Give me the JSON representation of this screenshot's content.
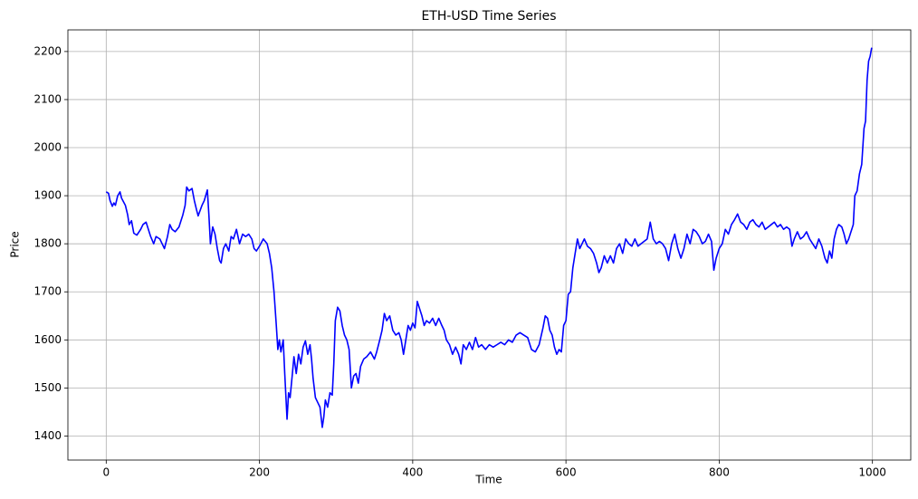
{
  "chart_data": {
    "type": "line",
    "title": "ETH-USD Time Series",
    "xlabel": "Time",
    "ylabel": "Price",
    "x": [
      0,
      3,
      5,
      8,
      10,
      12,
      15,
      18,
      20,
      25,
      28,
      30,
      33,
      36,
      40,
      45,
      48,
      52,
      55,
      58,
      62,
      65,
      70,
      73,
      76,
      80,
      83,
      86,
      90,
      95,
      100,
      103,
      105,
      108,
      112,
      115,
      118,
      120,
      125,
      128,
      132,
      134,
      136,
      139,
      142,
      145,
      148,
      150,
      153,
      156,
      160,
      163,
      166,
      170,
      174,
      178,
      182,
      186,
      190,
      193,
      196,
      200,
      205,
      210,
      213,
      216,
      219,
      222,
      224,
      226,
      228,
      231,
      233,
      236,
      238,
      240,
      243,
      245,
      248,
      251,
      254,
      257,
      260,
      263,
      266,
      268,
      270,
      273,
      276,
      279,
      282,
      284,
      286,
      289,
      292,
      295,
      297,
      299,
      302,
      305,
      308,
      311,
      314,
      317,
      320,
      323,
      326,
      329,
      332,
      336,
      340,
      345,
      350,
      353,
      357,
      360,
      363,
      366,
      370,
      374,
      378,
      382,
      385,
      388,
      391,
      394,
      397,
      400,
      403,
      406,
      409,
      412,
      415,
      418,
      422,
      426,
      430,
      434,
      438,
      441,
      444,
      448,
      452,
      456,
      460,
      463,
      466,
      470,
      474,
      478,
      482,
      486,
      490,
      495,
      500,
      505,
      510,
      515,
      520,
      525,
      530,
      535,
      540,
      545,
      550,
      555,
      560,
      565,
      570,
      573,
      576,
      579,
      582,
      585,
      588,
      591,
      594,
      597,
      600,
      603,
      606,
      609,
      612,
      615,
      618,
      621,
      624,
      628,
      632,
      636,
      640,
      643,
      646,
      650,
      654,
      658,
      662,
      666,
      670,
      674,
      678,
      682,
      686,
      690,
      694,
      698,
      702,
      706,
      710,
      714,
      718,
      722,
      726,
      730,
      734,
      738,
      742,
      746,
      750,
      754,
      758,
      762,
      766,
      770,
      774,
      778,
      782,
      786,
      790,
      793,
      796,
      800,
      804,
      808,
      812,
      816,
      820,
      824,
      828,
      832,
      836,
      840,
      844,
      848,
      852,
      856,
      860,
      864,
      868,
      872,
      876,
      880,
      884,
      888,
      892,
      895,
      898,
      902,
      906,
      910,
      914,
      918,
      922,
      926,
      930,
      934,
      938,
      941,
      944,
      947,
      950,
      953,
      956,
      960,
      963,
      966,
      969,
      972,
      975,
      977,
      980,
      983,
      986,
      989,
      991,
      993,
      995,
      997,
      999
    ],
    "series": [
      {
        "name": "ETH-USD",
        "color": "#0000ff",
        "values": [
          1908,
          1905,
          1890,
          1878,
          1885,
          1880,
          1900,
          1908,
          1895,
          1880,
          1860,
          1840,
          1848,
          1822,
          1818,
          1830,
          1840,
          1845,
          1830,
          1815,
          1800,
          1815,
          1810,
          1800,
          1790,
          1815,
          1840,
          1830,
          1825,
          1835,
          1860,
          1880,
          1918,
          1910,
          1915,
          1890,
          1870,
          1858,
          1880,
          1890,
          1912,
          1860,
          1800,
          1835,
          1820,
          1790,
          1765,
          1760,
          1790,
          1800,
          1785,
          1815,
          1810,
          1830,
          1800,
          1820,
          1815,
          1820,
          1810,
          1790,
          1785,
          1795,
          1810,
          1800,
          1780,
          1750,
          1700,
          1630,
          1580,
          1600,
          1575,
          1600,
          1530,
          1435,
          1490,
          1480,
          1530,
          1565,
          1530,
          1570,
          1550,
          1585,
          1598,
          1570,
          1590,
          1560,
          1520,
          1480,
          1470,
          1460,
          1418,
          1440,
          1475,
          1460,
          1490,
          1485,
          1550,
          1640,
          1668,
          1660,
          1630,
          1610,
          1600,
          1580,
          1500,
          1525,
          1530,
          1510,
          1545,
          1560,
          1565,
          1575,
          1560,
          1575,
          1600,
          1620,
          1655,
          1640,
          1650,
          1620,
          1610,
          1615,
          1600,
          1570,
          1600,
          1630,
          1620,
          1635,
          1625,
          1680,
          1665,
          1650,
          1630,
          1640,
          1635,
          1645,
          1630,
          1645,
          1630,
          1620,
          1600,
          1590,
          1570,
          1585,
          1570,
          1550,
          1590,
          1580,
          1595,
          1580,
          1605,
          1585,
          1590,
          1580,
          1590,
          1585,
          1590,
          1595,
          1590,
          1600,
          1595,
          1610,
          1615,
          1610,
          1605,
          1580,
          1575,
          1590,
          1625,
          1650,
          1645,
          1620,
          1610,
          1585,
          1570,
          1580,
          1575,
          1630,
          1640,
          1695,
          1700,
          1750,
          1780,
          1810,
          1790,
          1800,
          1810,
          1795,
          1790,
          1780,
          1760,
          1740,
          1750,
          1775,
          1760,
          1775,
          1760,
          1790,
          1800,
          1780,
          1810,
          1800,
          1795,
          1810,
          1795,
          1800,
          1805,
          1810,
          1845,
          1810,
          1800,
          1805,
          1800,
          1790,
          1765,
          1800,
          1820,
          1790,
          1770,
          1790,
          1820,
          1800,
          1830,
          1825,
          1815,
          1800,
          1805,
          1820,
          1805,
          1745,
          1770,
          1790,
          1800,
          1830,
          1820,
          1840,
          1850,
          1862,
          1845,
          1840,
          1830,
          1845,
          1850,
          1840,
          1835,
          1845,
          1830,
          1835,
          1840,
          1845,
          1835,
          1840,
          1830,
          1835,
          1830,
          1795,
          1810,
          1825,
          1810,
          1815,
          1825,
          1810,
          1800,
          1790,
          1810,
          1795,
          1770,
          1760,
          1785,
          1770,
          1810,
          1830,
          1840,
          1835,
          1820,
          1800,
          1810,
          1825,
          1840,
          1900,
          1910,
          1945,
          1965,
          2040,
          2055,
          2140,
          2180,
          2190,
          2208
        ]
      }
    ],
    "xlim": [
      -50,
      1050
    ],
    "ylim": [
      1350,
      2245
    ],
    "xticks": [
      0,
      200,
      400,
      600,
      800,
      1000
    ],
    "yticks": [
      1400,
      1500,
      1600,
      1700,
      1800,
      1900,
      2000,
      2100,
      2200
    ],
    "grid": true
  }
}
